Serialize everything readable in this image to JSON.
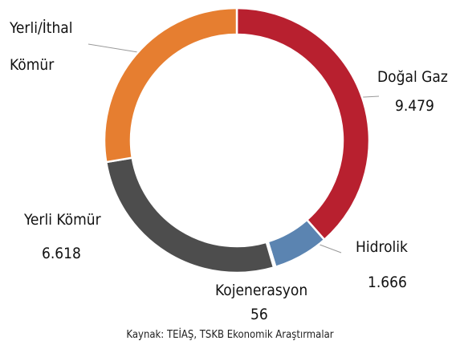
{
  "chart_data": {
    "type": "donut",
    "series": [
      {
        "name": "Doğal Gaz",
        "color": "#b8202f",
        "values": [
          9479
        ],
        "value_labels": [
          "9.479"
        ]
      },
      {
        "name": "Hidrolik",
        "color": "#5b84b1",
        "values": [
          1666
        ],
        "value_labels": [
          "1.666"
        ]
      },
      {
        "name": "Kojenerasyon",
        "color": "#6fa24a",
        "values": [
          56
        ],
        "value_labels": [
          "56"
        ]
      },
      {
        "name": "Yerli Kömür",
        "color": "#4d4d4d",
        "values": [
          6618
        ],
        "value_labels": [
          "6.618"
        ]
      },
      {
        "name": "Yerli/İthal Kömür",
        "color": "#e67e30",
        "values": [
          6800
        ]
      }
    ],
    "source": "Kaynak: TEİAŞ, TSKB Ekonomik Araştırmalar"
  }
}
